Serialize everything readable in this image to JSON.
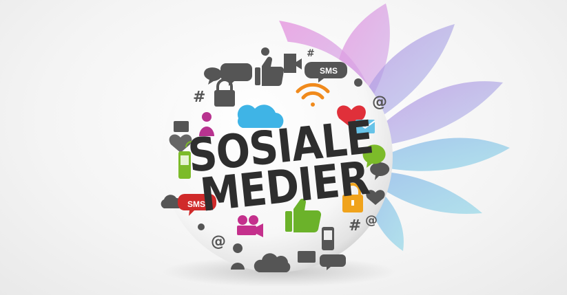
{
  "headline": {
    "line1": "SOSIALE",
    "line2": "MEDIER"
  },
  "badges": {
    "sms_red": "SMS",
    "sms_gray": "SMS"
  },
  "colors": {
    "petal_pink": "#d9a0d6",
    "petal_purple": "#b39be0",
    "petal_blue": "#8fc5e0",
    "cloud_blue": "#3fb4e6",
    "wifi_orange": "#f08a1c",
    "heart_red": "#e0303a",
    "person_magenta": "#b8338f",
    "phone_green": "#7cbb2a",
    "chat_green": "#7cbb2a",
    "lock_orange": "#f0a31c",
    "thumb_green": "#6bb22a",
    "camera_magenta": "#c4308c",
    "icon_gray": "#555555",
    "headline_text": "#2e2e2e"
  },
  "icons": [
    "cloud-icon",
    "wifi-icon",
    "heart-icon",
    "lock-icon",
    "person-icon",
    "phone-icon",
    "chat-bubble-icon",
    "envelope-icon",
    "thumbs-up-icon",
    "video-camera-icon",
    "at-sign-icon",
    "hash-icon",
    "sms-bubble-icon"
  ]
}
